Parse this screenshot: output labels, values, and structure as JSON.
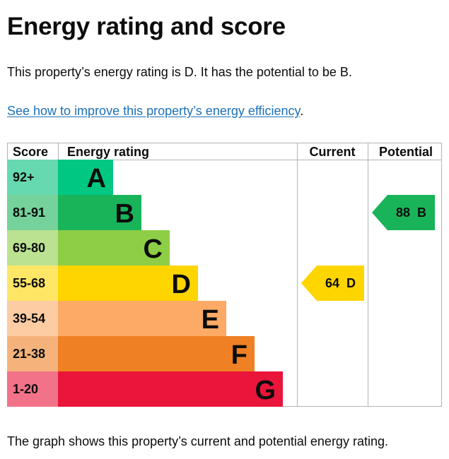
{
  "page": {
    "title": "Energy rating and score",
    "intro": "This property’s energy rating is D. It has the potential to be B.",
    "link_text": "See how to improve this property’s energy efficiency",
    "link_suffix": ".",
    "footnote": "The graph shows this property’s current and potential energy rating."
  },
  "chart_data": {
    "type": "bar",
    "headers": {
      "score": "Score",
      "rating": "Energy rating",
      "current": "Current",
      "potential": "Potential"
    },
    "bands": [
      {
        "letter": "A",
        "range": "92+",
        "color": "#00c781",
        "range_color": "#66d9b0"
      },
      {
        "letter": "B",
        "range": "81-91",
        "color": "#19b459",
        "range_color": "#75d29b"
      },
      {
        "letter": "C",
        "range": "69-80",
        "color": "#8dce46",
        "range_color": "#bbe290"
      },
      {
        "letter": "D",
        "range": "55-68",
        "color": "#ffd500",
        "range_color": "#ffe666"
      },
      {
        "letter": "E",
        "range": "39-54",
        "color": "#fcaa65",
        "range_color": "#fdcca3"
      },
      {
        "letter": "F",
        "range": "21-38",
        "color": "#ef8023",
        "range_color": "#f5b37b"
      },
      {
        "letter": "G",
        "range": "1-20",
        "color": "#e9153b",
        "range_color": "#f27389"
      }
    ],
    "current": {
      "score": 64,
      "band": "D",
      "label": "64 D",
      "color": "#ffd500"
    },
    "potential": {
      "score": 88,
      "band": "B",
      "label": "88 B",
      "color": "#19b459"
    }
  }
}
